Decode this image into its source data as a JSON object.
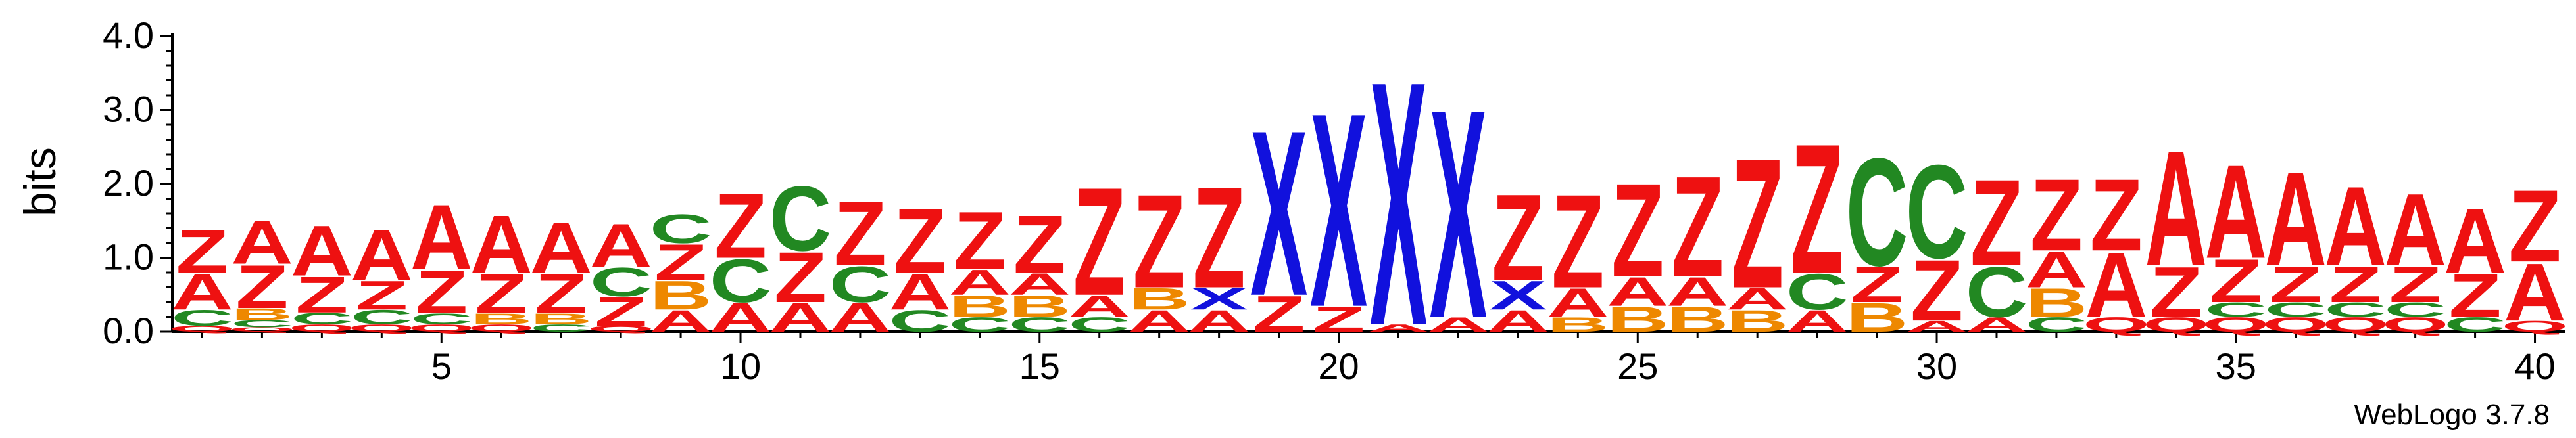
{
  "chart_data": {
    "type": "sequence_logo",
    "ylabel": "bits",
    "ylim": [
      0,
      4.0
    ],
    "yticks": [
      "0.0",
      "1.0",
      "2.0",
      "3.0",
      "4.0"
    ],
    "xticks": [
      5,
      10,
      15,
      20,
      25,
      30,
      35,
      40
    ],
    "footer": "WebLogo 3.7.8",
    "colors": {
      "Z": "#ee1111",
      "A": "#ee1111",
      "X": "#1111dd",
      "C": "#228822",
      "B": "#ee8800",
      "Q": "#ee1111",
      "T": "#ee1111",
      "W": "#1111dd"
    },
    "positions": [
      {
        "pos": 1,
        "stack": [
          [
            "Q",
            0.08
          ],
          [
            "C",
            0.22
          ],
          [
            "A",
            0.5
          ],
          [
            "Z",
            0.6
          ]
        ]
      },
      {
        "pos": 2,
        "stack": [
          [
            "Q",
            0.06
          ],
          [
            "C",
            0.1
          ],
          [
            "B",
            0.16
          ],
          [
            "Z",
            0.6
          ],
          [
            "A",
            0.6
          ]
        ]
      },
      {
        "pos": 3,
        "stack": [
          [
            "Q",
            0.1
          ],
          [
            "C",
            0.16
          ],
          [
            "Z",
            0.5
          ],
          [
            "A",
            0.7
          ]
        ]
      },
      {
        "pos": 4,
        "stack": [
          [
            "Q",
            0.1
          ],
          [
            "C",
            0.2
          ],
          [
            "Z",
            0.4
          ],
          [
            "A",
            0.7
          ]
        ]
      },
      {
        "pos": 5,
        "stack": [
          [
            "Q",
            0.1
          ],
          [
            "C",
            0.15
          ],
          [
            "Z",
            0.6
          ],
          [
            "A",
            0.9
          ]
        ]
      },
      {
        "pos": 6,
        "stack": [
          [
            "Q",
            0.1
          ],
          [
            "B",
            0.15
          ],
          [
            "Z",
            0.55
          ],
          [
            "A",
            0.8
          ]
        ]
      },
      {
        "pos": 7,
        "stack": [
          [
            "C",
            0.1
          ],
          [
            "B",
            0.15
          ],
          [
            "Z",
            0.55
          ],
          [
            "A",
            0.7
          ]
        ]
      },
      {
        "pos": 8,
        "stack": [
          [
            "Q",
            0.08
          ],
          [
            "Z",
            0.4
          ],
          [
            "C",
            0.4
          ],
          [
            "A",
            0.6
          ]
        ]
      },
      {
        "pos": 9,
        "stack": [
          [
            "A",
            0.3
          ],
          [
            "B",
            0.4
          ],
          [
            "Z",
            0.5
          ],
          [
            "C",
            0.4
          ]
        ]
      },
      {
        "pos": 10,
        "stack": [
          [
            "A",
            0.4
          ],
          [
            "C",
            0.6
          ],
          [
            "Z",
            0.9
          ]
        ]
      },
      {
        "pos": 11,
        "stack": [
          [
            "A",
            0.4
          ],
          [
            "Z",
            0.7
          ],
          [
            "C",
            0.9
          ]
        ]
      },
      {
        "pos": 12,
        "stack": [
          [
            "A",
            0.4
          ],
          [
            "C",
            0.5
          ],
          [
            "Z",
            0.9
          ]
        ]
      },
      {
        "pos": 13,
        "stack": [
          [
            "C",
            0.3
          ],
          [
            "A",
            0.5
          ],
          [
            "Z",
            0.9
          ]
        ]
      },
      {
        "pos": 14,
        "stack": [
          [
            "C",
            0.2
          ],
          [
            "B",
            0.3
          ],
          [
            "A",
            0.35
          ],
          [
            "Z",
            0.8
          ]
        ]
      },
      {
        "pos": 15,
        "stack": [
          [
            "C",
            0.2
          ],
          [
            "B",
            0.3
          ],
          [
            "A",
            0.3
          ],
          [
            "Z",
            0.8
          ]
        ]
      },
      {
        "pos": 16,
        "stack": [
          [
            "C",
            0.2
          ],
          [
            "A",
            0.3
          ],
          [
            "Z",
            1.5
          ]
        ]
      },
      {
        "pos": 17,
        "stack": [
          [
            "A",
            0.3
          ],
          [
            "B",
            0.3
          ],
          [
            "Z",
            1.3
          ]
        ]
      },
      {
        "pos": 18,
        "stack": [
          [
            "A",
            0.3
          ],
          [
            "X",
            0.3
          ],
          [
            "Z",
            1.4
          ]
        ]
      },
      {
        "pos": 19,
        "stack": [
          [
            "Z",
            0.5
          ],
          [
            "X",
            2.3
          ]
        ]
      },
      {
        "pos": 20,
        "stack": [
          [
            "Z",
            0.35
          ],
          [
            "X",
            2.7
          ]
        ]
      },
      {
        "pos": 21,
        "stack": [
          [
            "A",
            0.1
          ],
          [
            "X",
            3.4
          ]
        ]
      },
      {
        "pos": 22,
        "stack": [
          [
            "A",
            0.2
          ],
          [
            "X",
            2.9
          ]
        ]
      },
      {
        "pos": 23,
        "stack": [
          [
            "A",
            0.3
          ],
          [
            "X",
            0.4
          ],
          [
            "Z",
            1.2
          ]
        ]
      },
      {
        "pos": 24,
        "stack": [
          [
            "B",
            0.2
          ],
          [
            "A",
            0.4
          ],
          [
            "Z",
            1.3
          ]
        ]
      },
      {
        "pos": 25,
        "stack": [
          [
            "B",
            0.35
          ],
          [
            "A",
            0.4
          ],
          [
            "Z",
            1.3
          ]
        ]
      },
      {
        "pos": 26,
        "stack": [
          [
            "B",
            0.35
          ],
          [
            "A",
            0.4
          ],
          [
            "Z",
            1.4
          ]
        ]
      },
      {
        "pos": 27,
        "stack": [
          [
            "B",
            0.3
          ],
          [
            "A",
            0.3
          ],
          [
            "Z",
            1.8
          ]
        ]
      },
      {
        "pos": 28,
        "stack": [
          [
            "A",
            0.3
          ],
          [
            "C",
            0.5
          ],
          [
            "Z",
            1.8
          ]
        ]
      },
      {
        "pos": 29,
        "stack": [
          [
            "B",
            0.4
          ],
          [
            "Z",
            0.5
          ],
          [
            "C",
            1.5
          ]
        ]
      },
      {
        "pos": 30,
        "stack": [
          [
            "A",
            0.15
          ],
          [
            "Z",
            0.85
          ],
          [
            "C",
            1.3
          ]
        ]
      },
      {
        "pos": 31,
        "stack": [
          [
            "A",
            0.2
          ],
          [
            "C",
            0.7
          ],
          [
            "Z",
            1.2
          ]
        ]
      },
      {
        "pos": 32,
        "stack": [
          [
            "C",
            0.2
          ],
          [
            "B",
            0.4
          ],
          [
            "A",
            0.5
          ],
          [
            "Z",
            1.0
          ]
        ]
      },
      {
        "pos": 33,
        "stack": [
          [
            "Q",
            0.2
          ],
          [
            "A",
            0.9
          ],
          [
            "Z",
            1.0
          ]
        ]
      },
      {
        "pos": 34,
        "stack": [
          [
            "Q",
            0.2
          ],
          [
            "Z",
            0.7
          ],
          [
            "A",
            1.6
          ]
        ]
      },
      {
        "pos": 35,
        "stack": [
          [
            "Q",
            0.2
          ],
          [
            "C",
            0.2
          ],
          [
            "Z",
            0.6
          ],
          [
            "A",
            1.3
          ]
        ]
      },
      {
        "pos": 36,
        "stack": [
          [
            "Q",
            0.2
          ],
          [
            "C",
            0.2
          ],
          [
            "Z",
            0.5
          ],
          [
            "A",
            1.3
          ]
        ]
      },
      {
        "pos": 37,
        "stack": [
          [
            "Q",
            0.2
          ],
          [
            "C",
            0.2
          ],
          [
            "Z",
            0.5
          ],
          [
            "A",
            1.1
          ]
        ]
      },
      {
        "pos": 38,
        "stack": [
          [
            "Q",
            0.2
          ],
          [
            "C",
            0.2
          ],
          [
            "Z",
            0.5
          ],
          [
            "A",
            1.0
          ]
        ]
      },
      {
        "pos": 39,
        "stack": [
          [
            "C",
            0.2
          ],
          [
            "Z",
            0.6
          ],
          [
            "A",
            0.9
          ]
        ]
      },
      {
        "pos": 40,
        "stack": [
          [
            "Q",
            0.15
          ],
          [
            "A",
            0.8
          ],
          [
            "Z",
            1.0
          ]
        ]
      }
    ]
  }
}
